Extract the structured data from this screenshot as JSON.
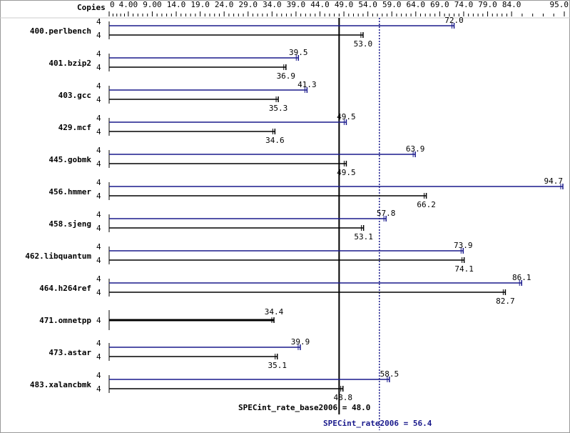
{
  "chart_data": {
    "type": "bar",
    "orientation": "horizontal",
    "copies_header": "Copies",
    "xlim": [
      0,
      95.0
    ],
    "ticks": [
      "0",
      "4.00",
      "9.00",
      "14.0",
      "19.0",
      "24.0",
      "29.0",
      "34.0",
      "39.0",
      "44.0",
      "49.0",
      "54.0",
      "59.0",
      "64.0",
      "69.0",
      "74.0",
      "79.0",
      "84.0",
      "95.0"
    ],
    "tick_values": [
      0,
      4,
      9,
      14,
      19,
      24,
      29,
      34,
      39,
      44,
      49,
      54,
      59,
      64,
      69,
      74,
      79,
      84,
      95
    ],
    "colors": {
      "peak": "#1a1a8c",
      "base": "#000000"
    },
    "benchmarks": [
      {
        "name": "400.perlbench",
        "peak_copies": "4",
        "base_copies": "4",
        "peak": 72.0,
        "base": 53.0,
        "peak_label": "72.0",
        "base_label": "53.0"
      },
      {
        "name": "401.bzip2",
        "peak_copies": "4",
        "base_copies": "4",
        "peak": 39.5,
        "base": 36.9,
        "peak_label": "39.5",
        "base_label": "36.9"
      },
      {
        "name": "403.gcc",
        "peak_copies": "4",
        "base_copies": "4",
        "peak": 41.3,
        "base": 35.3,
        "peak_label": "41.3",
        "base_label": "35.3"
      },
      {
        "name": "429.mcf",
        "peak_copies": "4",
        "base_copies": "4",
        "peak": 49.5,
        "base": 34.6,
        "peak_label": "49.5",
        "base_label": "34.6"
      },
      {
        "name": "445.gobmk",
        "peak_copies": "4",
        "base_copies": "4",
        "peak": 63.9,
        "base": 49.5,
        "peak_label": "63.9",
        "base_label": "49.5"
      },
      {
        "name": "456.hmmer",
        "peak_copies": "4",
        "base_copies": "4",
        "peak": 94.7,
        "base": 66.2,
        "peak_label": "94.7",
        "base_label": "66.2"
      },
      {
        "name": "458.sjeng",
        "peak_copies": "4",
        "base_copies": "4",
        "peak": 57.8,
        "base": 53.1,
        "peak_label": "57.8",
        "base_label": "53.1"
      },
      {
        "name": "462.libquantum",
        "peak_copies": "4",
        "base_copies": "4",
        "peak": 73.9,
        "base": 74.1,
        "peak_label": "73.9",
        "base_label": "74.1"
      },
      {
        "name": "464.h264ref",
        "peak_copies": "4",
        "base_copies": "4",
        "peak": 86.1,
        "base": 82.7,
        "peak_label": "86.1",
        "base_label": "82.7"
      },
      {
        "name": "471.omnetpp",
        "combined_copies": "4",
        "combined": 34.4,
        "combined_label": "34.4"
      },
      {
        "name": "473.astar",
        "peak_copies": "4",
        "base_copies": "4",
        "peak": 39.9,
        "base": 35.1,
        "peak_label": "39.9",
        "base_label": "35.1"
      },
      {
        "name": "483.xalancbmk",
        "peak_copies": "4",
        "base_copies": "4",
        "peak": 58.5,
        "base": 48.8,
        "peak_label": "58.5",
        "base_label": "48.8"
      }
    ],
    "base_ref": {
      "value": 48.0,
      "label": "SPECint_rate_base2006 = 48.0"
    },
    "peak_ref": {
      "value": 56.4,
      "label": "SPECint_rate2006 = 56.4"
    }
  }
}
